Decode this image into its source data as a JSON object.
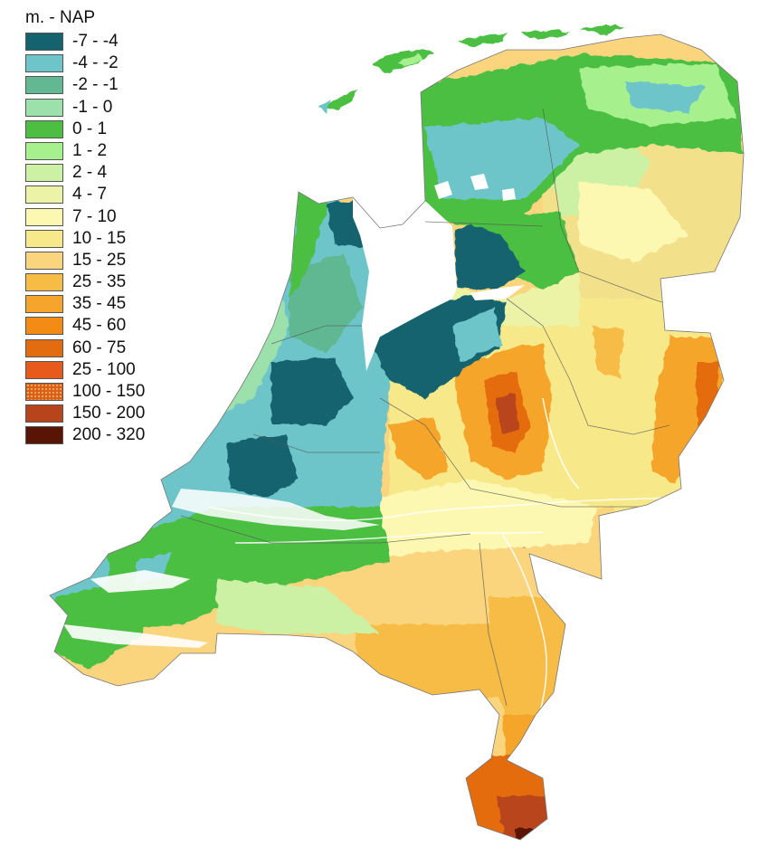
{
  "legend": {
    "title": "m. - NAP",
    "items": [
      {
        "label": "-7 - -4",
        "color": "#14636f"
      },
      {
        "label": "-4 - -2",
        "color": "#6ec5c9"
      },
      {
        "label": "-2 - -1",
        "color": "#61b892"
      },
      {
        "label": "-1 - 0",
        "color": "#9ce0ac"
      },
      {
        "label": "0 - 1",
        "color": "#4cbf43"
      },
      {
        "label": "1 - 2",
        "color": "#a6f08e"
      },
      {
        "label": "2 - 4",
        "color": "#ccf0a4"
      },
      {
        "label": "4 - 7",
        "color": "#ecf2a6"
      },
      {
        "label": "7 - 10",
        "color": "#fcf8b2"
      },
      {
        "label": "10 - 15",
        "color": "#f7e98a"
      },
      {
        "label": "15 - 25",
        "color": "#fad57e"
      },
      {
        "label": "25 - 35",
        "color": "#f7bc45"
      },
      {
        "label": "35 - 45",
        "color": "#f5a52b"
      },
      {
        "label": "45 - 60",
        "color": "#f48b14"
      },
      {
        "label": "60 - 75",
        "color": "#e46c10"
      },
      {
        "label": "25 - 100",
        "color": "#e8591c"
      },
      {
        "label": "100 - 150",
        "color": "#d96019",
        "pattern": "dotted"
      },
      {
        "label": "150 - 200",
        "color": "#b8441c"
      },
      {
        "label": "200 - 320",
        "color": "#5a1405"
      }
    ]
  }
}
